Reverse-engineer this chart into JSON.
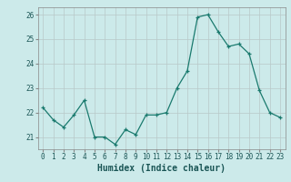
{
  "x": [
    0,
    1,
    2,
    3,
    4,
    5,
    6,
    7,
    8,
    9,
    10,
    11,
    12,
    13,
    14,
    15,
    16,
    17,
    18,
    19,
    20,
    21,
    22,
    23
  ],
  "y": [
    22.2,
    21.7,
    21.4,
    21.9,
    22.5,
    21.0,
    21.0,
    20.7,
    21.3,
    21.1,
    21.9,
    21.9,
    22.0,
    23.0,
    23.7,
    25.9,
    26.0,
    25.3,
    24.7,
    24.8,
    24.4,
    22.9,
    22.0,
    21.8
  ],
  "line_color": "#1a7a6e",
  "marker": "+",
  "marker_size": 3,
  "bg_color": "#cceaea",
  "grid_color": "#b8c8c8",
  "xlabel": "Humidex (Indice chaleur)",
  "ylim": [
    20.5,
    26.3
  ],
  "yticks": [
    21,
    22,
    23,
    24,
    25,
    26
  ],
  "xticks": [
    0,
    1,
    2,
    3,
    4,
    5,
    6,
    7,
    8,
    9,
    10,
    11,
    12,
    13,
    14,
    15,
    16,
    17,
    18,
    19,
    20,
    21,
    22,
    23
  ],
  "tick_fontsize": 5.5,
  "xlabel_fontsize": 7.0,
  "xlim": [
    -0.5,
    23.5
  ]
}
